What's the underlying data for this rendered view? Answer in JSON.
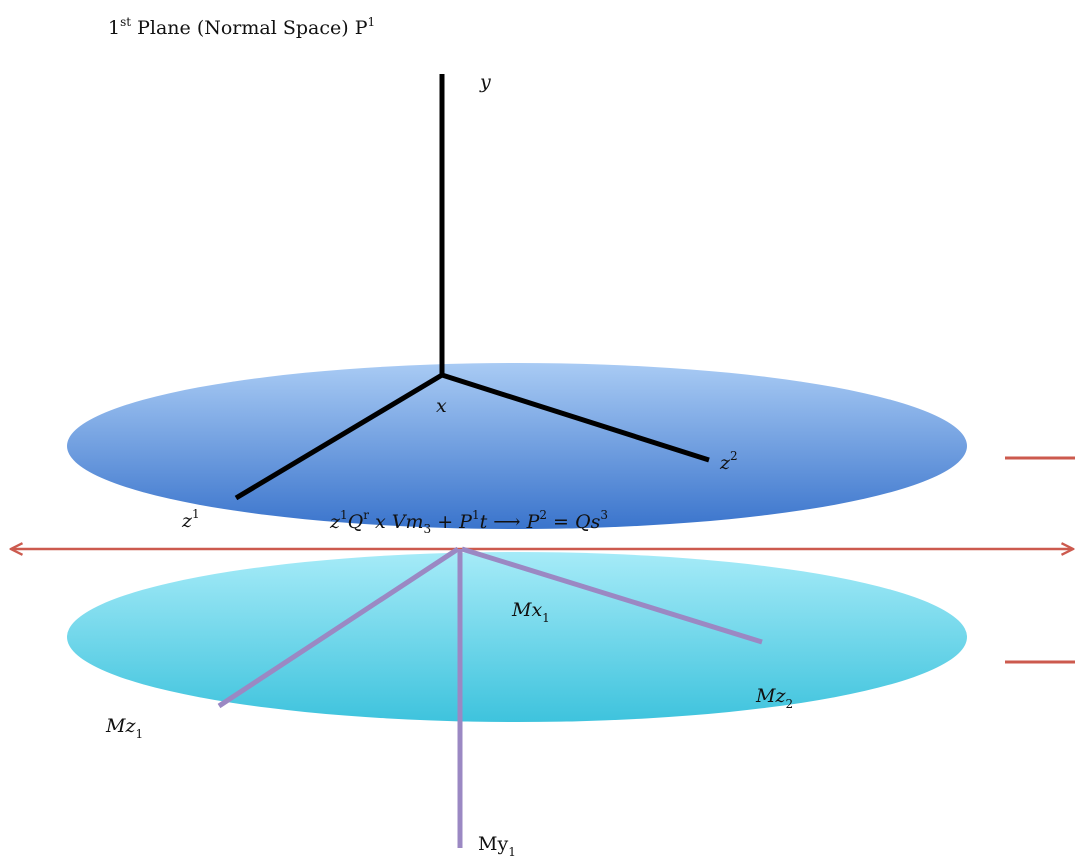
{
  "title": {
    "prefix": "1",
    "prefix_sup": "st",
    "text": " Plane (Normal Space) P",
    "sup": "1"
  },
  "labels": {
    "y": "y",
    "x": "x",
    "z1_base": "z",
    "z1_sup": "1",
    "z2_base": "z",
    "z2_sup": "2",
    "mx1_base": "Mx",
    "mx1_sub": "1",
    "mz1_base": "Mz",
    "mz1_sub": "1",
    "mz2_base": "Mz",
    "mz2_sub": "2",
    "my1_base": "My",
    "my1_sub": "1"
  },
  "equation": {
    "z": "z",
    "z_sup": "1",
    "q": "Q",
    "q_sup": "r",
    "x_vm": " x Vm",
    "vm_sub": "3",
    "plus_p": " + P",
    "p_sup": "1",
    "t": "t",
    "arrow": " ⟶ P",
    "p2_sup": "2",
    "eq": " = Qs",
    "s_sup": "3"
  },
  "colors": {
    "upper_plane_light": "#a9cbf4",
    "upper_plane_dark": "#3a74cc",
    "lower_plane_light": "#a6ebf8",
    "lower_plane_dark": "#3ec3dd",
    "axis_black": "#000000",
    "axis_purple": "#9b88c3",
    "arrow_red": "#cc5a4e"
  }
}
